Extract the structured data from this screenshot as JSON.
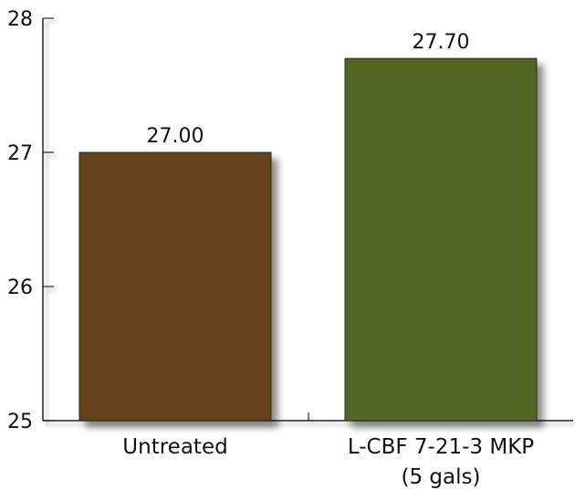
{
  "chart_data": {
    "type": "bar",
    "categories": [
      "Untreated",
      "L-CBF 7-21-3 MKP\n(5 gals)"
    ],
    "values": [
      27.0,
      27.7
    ],
    "value_labels": [
      "27.00",
      "27.70"
    ],
    "colors": [
      "#63431b",
      "#526523"
    ],
    "ylim": [
      25,
      28
    ],
    "yticks": [
      25,
      26,
      27,
      28
    ],
    "title": "",
    "xlabel": "",
    "ylabel": "",
    "grid": false,
    "legend": "none"
  }
}
